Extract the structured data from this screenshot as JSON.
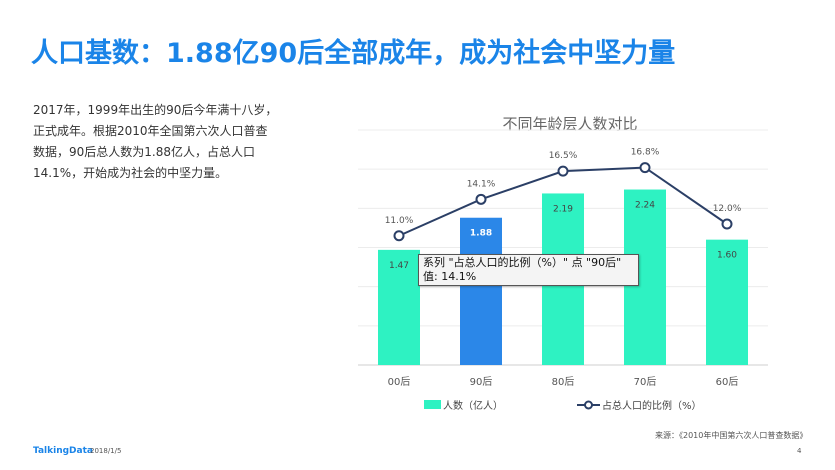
{
  "header": {
    "title": "人口基数：1.88亿90后全部成年，成为社会中坚力量"
  },
  "body": {
    "lines": [
      "2017年，1999年出生的90后今年满十八岁，",
      "正式成年。根据2010年全国第六次人口普查",
      "数据，90后总人数为1.88亿人，占总人口",
      "14.1%，开始成为社会的中坚力量。"
    ]
  },
  "chart_data": {
    "type": "bar",
    "title": "不同年龄层人数对比",
    "categories": [
      "00后",
      "90后",
      "80后",
      "70后",
      "60后"
    ],
    "series": [
      {
        "name": "人数（亿人）",
        "type": "bar",
        "values": [
          1.47,
          1.88,
          2.19,
          2.24,
          1.6
        ],
        "labels": [
          "1.47",
          "1.88",
          "2.19",
          "2.24",
          "1.60"
        ],
        "color": "#2ef2c2",
        "highlight_index": 1,
        "highlight_color": "#2b87e8"
      },
      {
        "name": "占总人口的比例（%）",
        "type": "line",
        "values": [
          11.0,
          14.1,
          16.5,
          16.8,
          12.0
        ],
        "labels": [
          "11.0%",
          "14.1%",
          "16.5%",
          "16.8%",
          "12.0%"
        ],
        "color": "#2b3f66"
      }
    ],
    "ylim_bars": [
      0,
      3
    ],
    "ylim_line": [
      0,
      20
    ],
    "grid": true,
    "legend": "bottom"
  },
  "tooltip": {
    "line1": "系列 \"占总人口的比例（%）\" 点 \"90后\"",
    "line2": "值: 14.1%"
  },
  "footer": {
    "source": "来源：《2010年中国第六次人口普查数据》",
    "brand": "TalkingData",
    "date": "2018/1/5",
    "page": "4"
  }
}
